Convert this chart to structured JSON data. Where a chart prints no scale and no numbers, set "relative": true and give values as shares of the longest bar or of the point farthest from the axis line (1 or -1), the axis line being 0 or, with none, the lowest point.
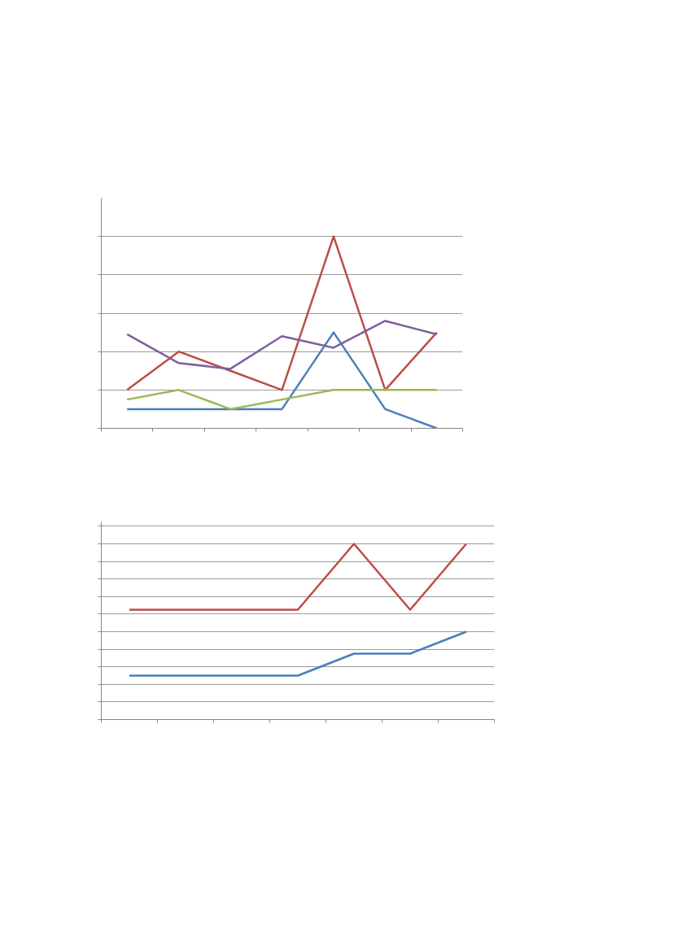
{
  "chart_data": [
    {
      "type": "line",
      "relative": true,
      "grid": "y",
      "tick_labels": false,
      "categories": [
        null,
        null,
        null,
        null,
        null,
        null,
        null
      ],
      "series": [
        {
          "color": "#4a7ebb",
          "values": [
            0.1,
            0.1,
            0.1,
            0.1,
            0.5,
            0.1,
            0
          ]
        },
        {
          "color": "#be4b48",
          "values": [
            0.2,
            0.4,
            0.3,
            0.2,
            1,
            0.2,
            0.5
          ]
        },
        {
          "color": "#98b954",
          "values": [
            0.15,
            0.2,
            0.1,
            0.15,
            0.2,
            0.2,
            0.2
          ]
        },
        {
          "color": "#7d60a0",
          "values": [
            0.49,
            0.34,
            0.31,
            0.48,
            0.42,
            0.56,
            0.49
          ]
        }
      ]
    },
    {
      "type": "line",
      "relative": true,
      "grid": "y",
      "tick_labels": false,
      "categories": [
        null,
        null,
        null,
        null,
        null,
        null,
        null
      ],
      "series": [
        {
          "color": "#4a7ebb",
          "values": [
            0.25,
            0.25,
            0.25,
            0.25,
            0.375,
            0.375,
            0.5
          ]
        },
        {
          "color": "#be4b48",
          "values": [
            0.625,
            0.625,
            0.625,
            0.625,
            1,
            0.625,
            1
          ]
        }
      ]
    }
  ]
}
